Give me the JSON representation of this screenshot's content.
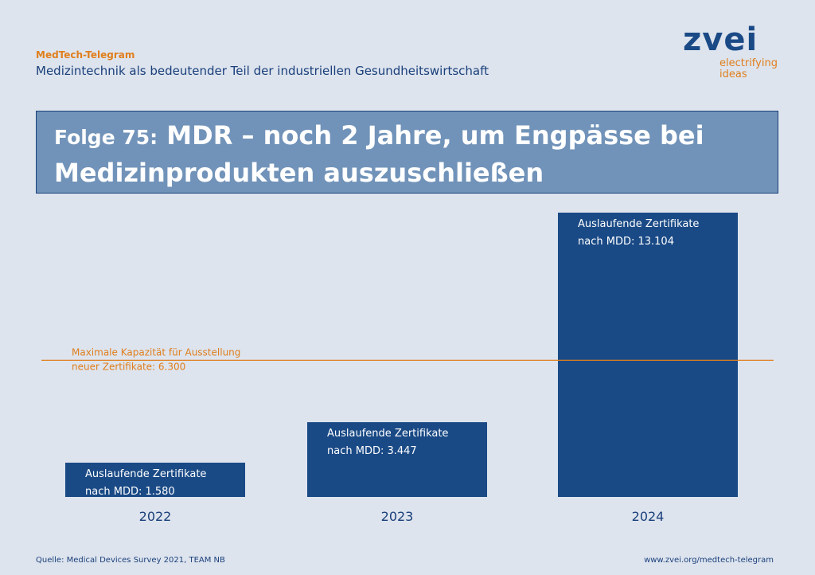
{
  "header": {
    "kicker": "MedTech-Telegram",
    "subtitle": "Medizintechnik als bedeutender Teil der industriellen Gesundheitswirtschaft"
  },
  "logo": {
    "word": "zvei",
    "tagline_1": "electrifying",
    "tagline_2": "ideas"
  },
  "banner": {
    "prefix": "Folge 75:",
    "title": "MDR – noch 2 Jahre, um Engpässe bei Medizinprodukten auszuschließen"
  },
  "colors": {
    "bar": "#1a4a86",
    "accent": "#e07e1c",
    "banner": "#7193b9",
    "background": "#dde4ee"
  },
  "chart_data": {
    "type": "bar",
    "categories": [
      "2022",
      "2023",
      "2024"
    ],
    "values": [
      1580,
      3447,
      13104
    ],
    "bar_labels": [
      [
        "Auslaufende Zertifikate",
        "nach MDD: 1.580"
      ],
      [
        "Auslaufende Zertifikate",
        "nach MDD: 3.447"
      ],
      [
        "Auslaufende Zertifikate",
        "nach MDD: 13.104"
      ]
    ],
    "reference_line": {
      "value": 6300,
      "label": [
        "Maximale Kapazität für Ausstellung",
        "neuer Zertifikate: 6.300"
      ]
    },
    "ylim": [
      0,
      13104
    ],
    "grid": false
  },
  "footer": {
    "source": "Quelle: Medical Devices Survey 2021, TEAM NB",
    "url": "www.zvei.org/medtech-telegram"
  }
}
